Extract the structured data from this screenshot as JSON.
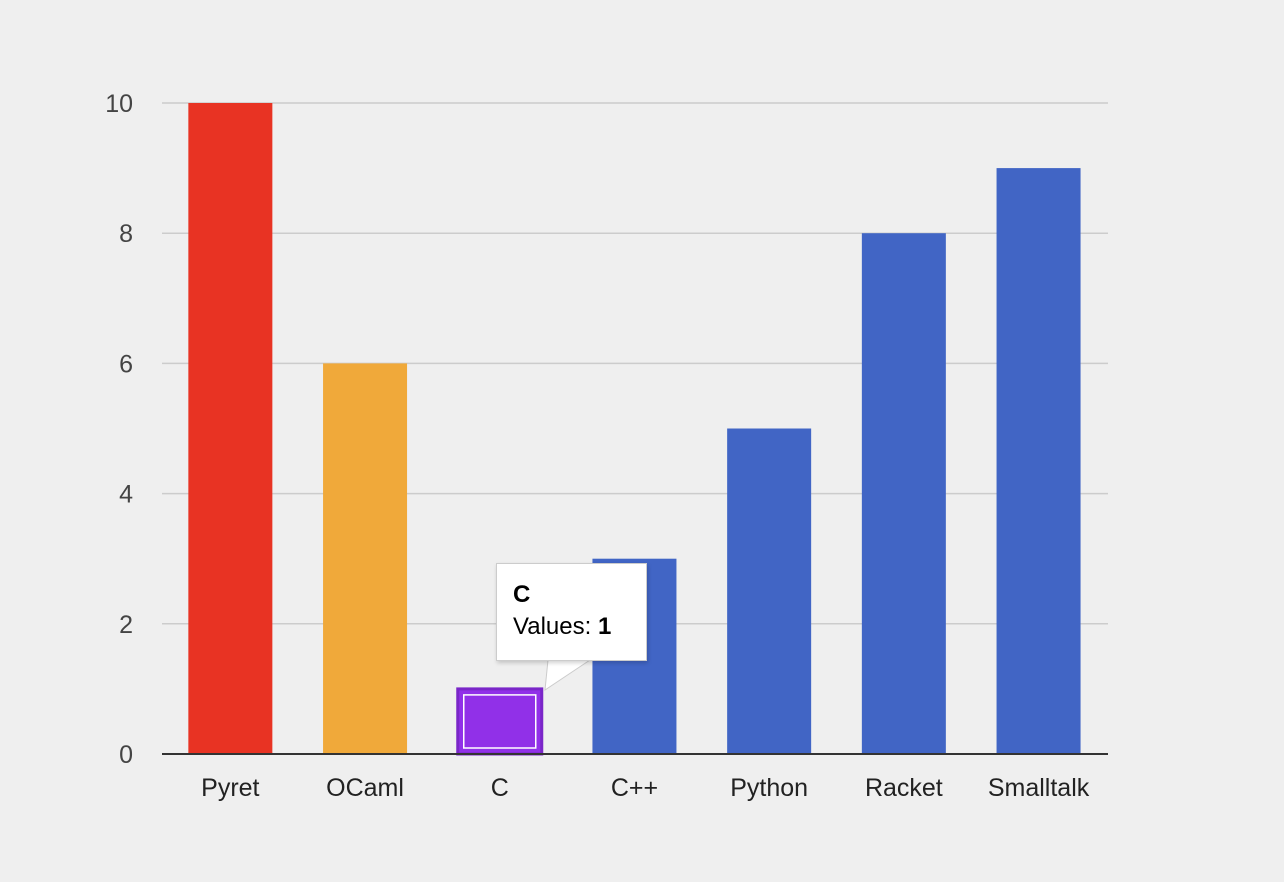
{
  "chart_data": {
    "type": "bar",
    "categories": [
      "Pyret",
      "OCaml",
      "C",
      "C++",
      "Python",
      "Racket",
      "Smalltalk"
    ],
    "values": [
      10,
      6,
      1,
      3,
      5,
      8,
      9
    ],
    "bar_colors": [
      "#e83323",
      "#f0a93a",
      "#9130e8",
      "#4165c5",
      "#4165c5",
      "#4165c5",
      "#4165c5"
    ],
    "ylim": [
      0,
      10
    ],
    "yticks": [
      0,
      2,
      4,
      6,
      8,
      10
    ],
    "grid": true,
    "highlighted_category": "C"
  },
  "tooltip": {
    "title": "C",
    "label": "Values: ",
    "value": "1"
  },
  "colors": {
    "background": "#efefef",
    "gridline": "#cccccc",
    "axis": "#333333",
    "highlight_border": "#7a26c8"
  }
}
